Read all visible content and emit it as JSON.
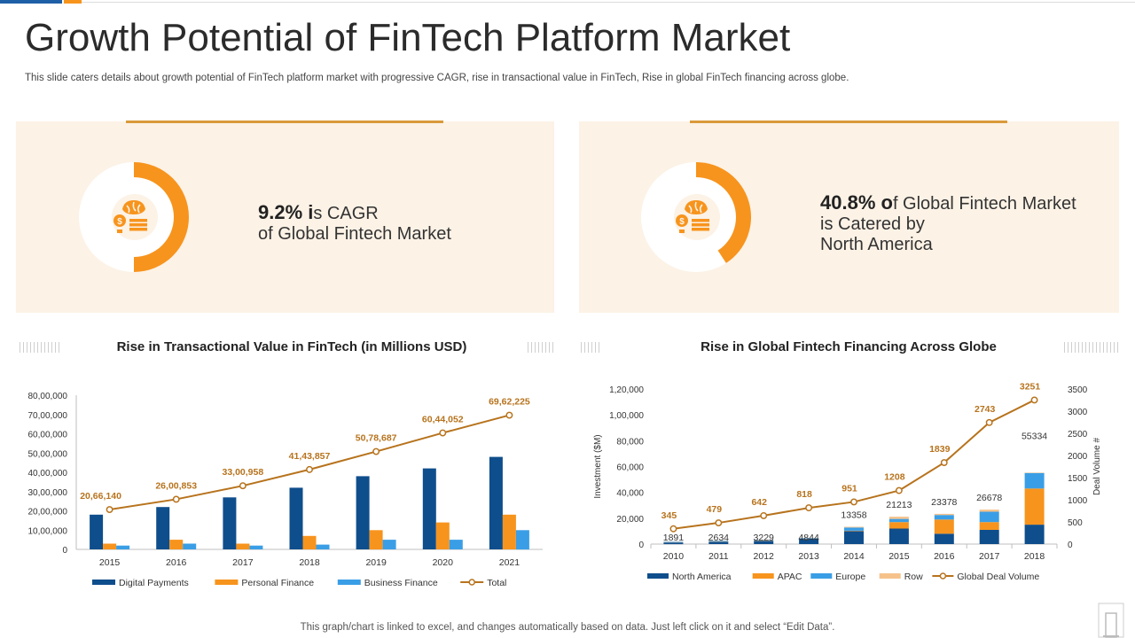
{
  "title": "Growth Potential of FinTech Platform Market",
  "subtitle": "This slide caters details about growth potential of FinTech platform market with progressive CAGR, rise in transactional value in FinTech, Rise in global FinTech financing across globe.",
  "colors": {
    "accent": "#f7941d",
    "navy": "#0f4e8c",
    "light_blue": "#3a9ee6",
    "peach": "#f6c28b",
    "line": "#b7731d",
    "card_bg": "#fcf2e6"
  },
  "card1": {
    "value": "9.2% i",
    "rest": "s CAGR",
    "line2": "of Global Fintech Market",
    "fraction": 0.5,
    "icon": "money-brain-icon"
  },
  "card2": {
    "value": "40.8% o",
    "rest": "f Global Fintech Market",
    "line2": "is Catered by",
    "line3": "North America",
    "fraction": 0.408,
    "icon": "money-brain-icon"
  },
  "footer": "This graph/chart is linked to excel,  and changes automatically based on data. Just left click on it and select “Edit Data”.",
  "chart_data": [
    {
      "type": "bar",
      "title": "Rise in Transactional Value in FinTech (in Millions USD)",
      "categories": [
        "2015",
        "2016",
        "2017",
        "2018",
        "2019",
        "2020",
        "2021"
      ],
      "y_ticks": [
        "0",
        "10,00,000",
        "20,00,000",
        "30,00,000",
        "40,00,000",
        "50,00,000",
        "60,00,000",
        "70,00,000",
        "80,00,000"
      ],
      "ylim": [
        0,
        8000000
      ],
      "series": [
        {
          "name": "Digital Payments",
          "kind": "bar",
          "color": "#0f4e8c",
          "values": [
            1800000,
            2200000,
            2700000,
            3200000,
            3800000,
            4200000,
            4800000
          ]
        },
        {
          "name": "Personal Finance",
          "kind": "bar",
          "color": "#f7941d",
          "values": [
            300000,
            500000,
            300000,
            700000,
            1000000,
            1400000,
            1800000
          ]
        },
        {
          "name": "Business Finance",
          "kind": "bar",
          "color": "#3a9ee6",
          "values": [
            200000,
            300000,
            200000,
            250000,
            500000,
            500000,
            1000000
          ]
        },
        {
          "name": "Total",
          "kind": "line",
          "color": "#b7731d",
          "values": [
            2066140,
            2600853,
            3300958,
            4143857,
            5078687,
            6044052,
            6962225
          ],
          "labels": [
            "20,66,140",
            "26,00,853",
            "33,00,958",
            "41,43,857",
            "50,78,687",
            "60,44,052",
            "69,62,225"
          ]
        }
      ],
      "legend": "bottom"
    },
    {
      "type": "bar",
      "title": "Rise in Global Fintech Financing Across Globe",
      "ylabel": "Investment   ($M)",
      "y2label": "Deal Volume #",
      "categories": [
        "2010",
        "2011",
        "2012",
        "2013",
        "2014",
        "2015",
        "2016",
        "2017",
        "2018"
      ],
      "y_ticks": [
        "0",
        "20,000",
        "40,000",
        "60,000",
        "80,000",
        "1,00,000",
        "1,20,000"
      ],
      "y2_ticks": [
        "0",
        "500",
        "1000",
        "1500",
        "2000",
        "2500",
        "3000",
        "3500"
      ],
      "ylim": [
        0,
        120000
      ],
      "y2lim": [
        0,
        3500
      ],
      "stack_totals": [
        "1891",
        "2634",
        "3229",
        "4844",
        "13358",
        "21213",
        "23378",
        "26678",
        "55334"
      ],
      "series": [
        {
          "name": "North America",
          "kind": "bar",
          "color": "#0f4e8c",
          "values": [
            1200,
            1800,
            2500,
            4000,
            10000,
            12000,
            8000,
            11000,
            15000
          ]
        },
        {
          "name": "APAC",
          "kind": "bar",
          "color": "#f7941d",
          "values": [
            100,
            150,
            200,
            200,
            300,
            5000,
            11000,
            6000,
            28000
          ]
        },
        {
          "name": "Europe",
          "kind": "bar",
          "color": "#3a9ee6",
          "values": [
            400,
            500,
            400,
            500,
            2500,
            2500,
            3500,
            8000,
            12000
          ]
        },
        {
          "name": "Row",
          "kind": "bar",
          "color": "#f6c28b",
          "values": [
            191,
            184,
            129,
            144,
            558,
            1713,
            878,
            1678,
            334
          ]
        },
        {
          "name": "Global Deal Volume",
          "kind": "line",
          "color": "#b7731d",
          "values": [
            345,
            479,
            642,
            818,
            951,
            1208,
            1839,
            2743,
            3251
          ],
          "labels": [
            "345",
            "479",
            "642",
            "818",
            "951",
            "1208",
            "1839",
            "2743",
            "3251"
          ]
        }
      ],
      "legend": "bottom"
    }
  ]
}
